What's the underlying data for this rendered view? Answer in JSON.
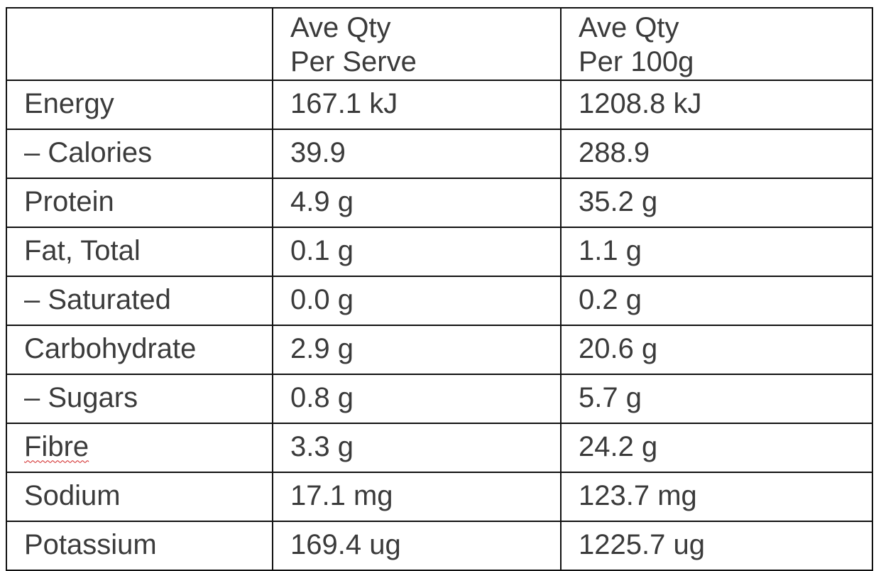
{
  "table": {
    "header": [
      null,
      [
        "Ave Qty",
        "Per Serve"
      ],
      [
        "Ave Qty",
        "Per 100g"
      ]
    ],
    "rows": [
      [
        "Energy",
        "167.1 kJ",
        "1208.8 kJ"
      ],
      [
        "– Calories",
        "39.9",
        "288.9"
      ],
      [
        "Protein",
        "4.9 g",
        "35.2 g"
      ],
      [
        "Fat, Total",
        "0.1 g",
        "1.1 g"
      ],
      [
        "– Saturated",
        "0.0 g",
        "0.2 g"
      ],
      [
        "Carbohydrate",
        "2.9 g",
        "20.6 g"
      ],
      [
        "– Sugars",
        "0.8 g",
        "5.7 g"
      ],
      [
        "Fibre",
        "3.3 g",
        "24.2 g"
      ],
      [
        "Sodium",
        "17.1 mg",
        "123.7 mg"
      ],
      [
        "Potassium",
        "169.4 ug",
        "1225.7 ug"
      ]
    ]
  }
}
